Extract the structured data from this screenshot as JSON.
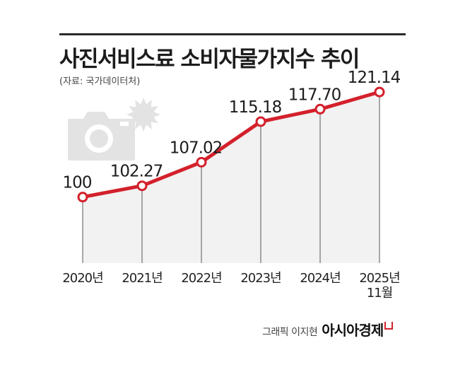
{
  "title": "사진서비스료 소비자물가지수 추이",
  "source": "(자료: 국가데이터처)",
  "credit": "그래픽 이지현",
  "brand": "아시아경제",
  "colors": {
    "line": "#d3212c",
    "area": "#f2f2f2",
    "drop": "#555555",
    "icon": "#e3e3e3"
  },
  "icons": [
    "camera-icon",
    "flash-burst-icon"
  ],
  "chart_data": {
    "type": "area",
    "categories": [
      "2020년",
      "2021년",
      "2022년",
      "2023년",
      "2024년",
      "2025년\n11월"
    ],
    "values": [
      100,
      102.27,
      107.02,
      115.18,
      117.7,
      121.14
    ],
    "value_labels": [
      "100",
      "102.27",
      "107.02",
      "115.18",
      "117.70",
      "121.14"
    ],
    "ylim": [
      87,
      124
    ],
    "grid": false,
    "legend": "none"
  }
}
